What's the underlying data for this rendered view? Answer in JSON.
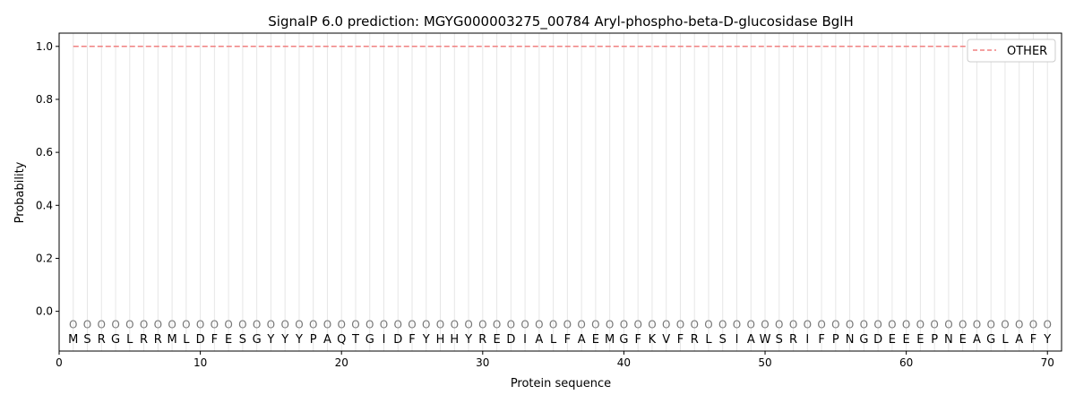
{
  "chart_data": {
    "type": "line",
    "title": "SignalP 6.0 prediction: MGYG000003275_00784 Aryl-phospho-beta-D-glucosidase BglH",
    "xlabel": "Protein sequence",
    "ylabel": "Probability",
    "xlim": [
      0,
      71
    ],
    "ylim": [
      -0.15,
      1.05
    ],
    "xticks": [
      0,
      10,
      20,
      30,
      40,
      50,
      60,
      70
    ],
    "yticks": [
      "0.0",
      "0.2",
      "0.4",
      "0.6",
      "0.8",
      "1.0"
    ],
    "sequence": "MSRGLRRMLDFESGYYYPAQTGIDFYHHYREDIALFAEMGFKVFRLSIAWSRIFPNGDEEEPNEAGLAFY",
    "region_label": "O",
    "series": [
      {
        "name": "OTHER",
        "color": "#f08080",
        "style": "dashed",
        "x_range": [
          1,
          70
        ],
        "value": 1.0
      }
    ],
    "legend": "top-right",
    "grid": "vertical lines at each residue"
  }
}
